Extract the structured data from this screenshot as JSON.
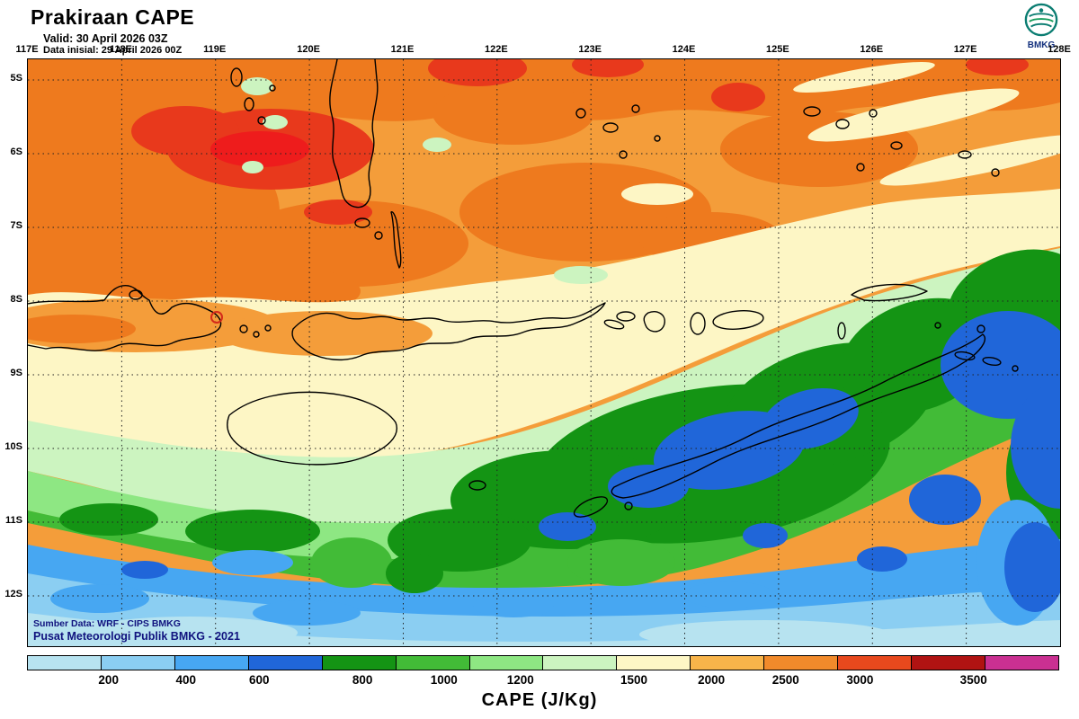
{
  "header": {
    "title": "Prakiraan CAPE",
    "valid": "Valid: 30 April 2026 03Z",
    "init": "Data inisial: 29 April 2026 00Z"
  },
  "logo": {
    "label": "BMKG"
  },
  "map": {
    "lon_labels": [
      "117E",
      "118E",
      "119E",
      "120E",
      "121E",
      "122E",
      "123E",
      "124E",
      "125E",
      "126E",
      "127E",
      "128E"
    ],
    "lat_labels": [
      "5S",
      "6S",
      "7S",
      "8S",
      "9S",
      "10S",
      "11S",
      "12S"
    ],
    "credit1": "Sumber Data: WRF - CIPS BMKG",
    "credit2": "Pusat Meteorologi Publik BMKG -  2021"
  },
  "colorbar": {
    "ticks": [
      "200",
      "400",
      "600",
      "800",
      "1000",
      "1200",
      "1500",
      "2000",
      "2500",
      "3000",
      "3500"
    ],
    "tick_pos_pct": [
      7.9,
      15.4,
      22.5,
      32.5,
      40.4,
      47.8,
      58.8,
      66.3,
      73.5,
      80.7,
      91.7
    ],
    "colors": [
      "#b7e3f0",
      "#8bcef2",
      "#47a7f2",
      "#2066d9",
      "#149414",
      "#42bb37",
      "#8ee783",
      "#ccf4c0",
      "#fdf6c5",
      "#f8b44a",
      "#f18a2b",
      "#e8491d",
      "#b01312",
      "#ca3092"
    ],
    "unit_label": "CAPE (J/Kg)"
  }
}
